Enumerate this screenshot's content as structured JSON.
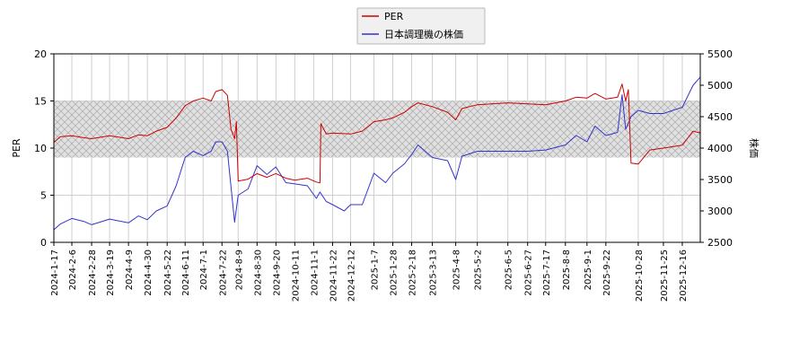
{
  "chart_data": {
    "type": "line",
    "legend_position": "top-center",
    "legend": [
      "PER",
      "日本調理機の株価"
    ],
    "left_axis": {
      "label": "PER",
      "range": [
        0,
        20
      ],
      "ticks": [
        0,
        5,
        10,
        15,
        20
      ]
    },
    "right_axis": {
      "label": "株価",
      "range": [
        2500,
        5500
      ],
      "ticks": [
        2500,
        3000,
        3500,
        4000,
        4500,
        5000,
        5500
      ]
    },
    "x_range": [
      "2024-01-17",
      "2026-01-05"
    ],
    "x_tick_labels": [
      "2024-1-17",
      "2024-2-6",
      "2024-2-28",
      "2024-3-19",
      "2024-4-9",
      "2024-4-30",
      "2024-5-22",
      "2024-6-11",
      "2024-7-1",
      "2024-7-22",
      "2024-8-9",
      "2024-8-30",
      "2024-9-20",
      "2024-10-11",
      "2024-11-1",
      "2024-11-22",
      "2024-12-12",
      "2025-1-7",
      "2025-1-28",
      "2025-2-18",
      "2025-3-13",
      "2025-4-8",
      "2025-5-2",
      "2025-6-5",
      "2025-6-27",
      "2025-7-17",
      "2025-8-8",
      "2025-9-1",
      "2025-9-22",
      "2025-10-28",
      "2025-11-25",
      "2025-12-16"
    ],
    "per_band": {
      "min": 9,
      "max": 15
    },
    "grid": true,
    "colors": {
      "per": "#cc0000",
      "price": "#3333cc",
      "band_fill": "#d9d9d9",
      "band_hatch": "#9a9a9a"
    },
    "series": [
      {
        "name": "PER",
        "axis": "left",
        "points": [
          [
            "2024-01-17",
            10.6
          ],
          [
            "2024-01-24",
            11.2
          ],
          [
            "2024-02-06",
            11.3
          ],
          [
            "2024-02-20",
            11.1
          ],
          [
            "2024-02-28",
            11.0
          ],
          [
            "2024-03-19",
            11.3
          ],
          [
            "2024-04-09",
            11.0
          ],
          [
            "2024-04-20",
            11.4
          ],
          [
            "2024-04-30",
            11.3
          ],
          [
            "2024-05-10",
            11.8
          ],
          [
            "2024-05-22",
            12.2
          ],
          [
            "2024-06-01",
            13.2
          ],
          [
            "2024-06-11",
            14.5
          ],
          [
            "2024-06-20",
            15.0
          ],
          [
            "2024-07-01",
            15.3
          ],
          [
            "2024-07-10",
            15.0
          ],
          [
            "2024-07-15",
            16.0
          ],
          [
            "2024-07-22",
            16.2
          ],
          [
            "2024-07-28",
            15.6
          ],
          [
            "2024-08-01",
            12.0
          ],
          [
            "2024-08-05",
            11.0
          ],
          [
            "2024-08-07",
            12.8
          ],
          [
            "2024-08-09",
            6.5
          ],
          [
            "2024-08-20",
            6.7
          ],
          [
            "2024-08-30",
            7.3
          ],
          [
            "2024-09-10",
            6.9
          ],
          [
            "2024-09-20",
            7.3
          ],
          [
            "2024-10-01",
            6.8
          ],
          [
            "2024-10-11",
            6.6
          ],
          [
            "2024-10-25",
            6.8
          ],
          [
            "2024-11-04",
            6.4
          ],
          [
            "2024-11-08",
            6.3
          ],
          [
            "2024-11-09",
            12.6
          ],
          [
            "2024-11-15",
            11.5
          ],
          [
            "2024-11-22",
            11.6
          ],
          [
            "2024-12-12",
            11.5
          ],
          [
            "2024-12-25",
            11.8
          ],
          [
            "2025-01-07",
            12.8
          ],
          [
            "2025-01-20",
            13.0
          ],
          [
            "2025-01-28",
            13.2
          ],
          [
            "2025-02-10",
            13.8
          ],
          [
            "2025-02-18",
            14.4
          ],
          [
            "2025-02-25",
            14.8
          ],
          [
            "2025-03-13",
            14.4
          ],
          [
            "2025-03-30",
            13.8
          ],
          [
            "2025-04-08",
            13.0
          ],
          [
            "2025-04-15",
            14.2
          ],
          [
            "2025-05-02",
            14.6
          ],
          [
            "2025-06-05",
            14.8
          ],
          [
            "2025-06-27",
            14.7
          ],
          [
            "2025-07-17",
            14.6
          ],
          [
            "2025-08-08",
            15.0
          ],
          [
            "2025-08-20",
            15.4
          ],
          [
            "2025-09-01",
            15.3
          ],
          [
            "2025-09-10",
            15.8
          ],
          [
            "2025-09-22",
            15.2
          ],
          [
            "2025-10-05",
            15.4
          ],
          [
            "2025-10-10",
            16.8
          ],
          [
            "2025-10-14",
            15.0
          ],
          [
            "2025-10-17",
            16.2
          ],
          [
            "2025-10-20",
            8.4
          ],
          [
            "2025-10-28",
            8.3
          ],
          [
            "2025-11-10",
            9.8
          ],
          [
            "2025-11-25",
            10.0
          ],
          [
            "2025-12-16",
            10.3
          ],
          [
            "2025-12-28",
            11.8
          ],
          [
            "2026-01-05",
            11.6
          ]
        ]
      },
      {
        "name": "日本調理機の株価",
        "axis": "right",
        "points": [
          [
            "2024-01-17",
            2700
          ],
          [
            "2024-01-24",
            2790
          ],
          [
            "2024-02-06",
            2880
          ],
          [
            "2024-02-20",
            2830
          ],
          [
            "2024-02-28",
            2780
          ],
          [
            "2024-03-19",
            2870
          ],
          [
            "2024-04-09",
            2810
          ],
          [
            "2024-04-20",
            2920
          ],
          [
            "2024-04-30",
            2860
          ],
          [
            "2024-05-10",
            3000
          ],
          [
            "2024-05-22",
            3080
          ],
          [
            "2024-06-01",
            3400
          ],
          [
            "2024-06-11",
            3850
          ],
          [
            "2024-06-20",
            3950
          ],
          [
            "2024-07-01",
            3880
          ],
          [
            "2024-07-10",
            3950
          ],
          [
            "2024-07-15",
            4100
          ],
          [
            "2024-07-22",
            4100
          ],
          [
            "2024-07-28",
            3950
          ],
          [
            "2024-08-05",
            2820
          ],
          [
            "2024-08-09",
            3250
          ],
          [
            "2024-08-20",
            3350
          ],
          [
            "2024-08-30",
            3720
          ],
          [
            "2024-09-10",
            3580
          ],
          [
            "2024-09-20",
            3700
          ],
          [
            "2024-10-01",
            3450
          ],
          [
            "2024-10-11",
            3430
          ],
          [
            "2024-10-25",
            3400
          ],
          [
            "2024-11-04",
            3200
          ],
          [
            "2024-11-08",
            3300
          ],
          [
            "2024-11-15",
            3150
          ],
          [
            "2024-11-22",
            3100
          ],
          [
            "2024-12-05",
            3000
          ],
          [
            "2024-12-12",
            3100
          ],
          [
            "2024-12-25",
            3100
          ],
          [
            "2025-01-07",
            3600
          ],
          [
            "2025-01-20",
            3450
          ],
          [
            "2025-01-28",
            3600
          ],
          [
            "2025-02-10",
            3750
          ],
          [
            "2025-02-18",
            3900
          ],
          [
            "2025-02-25",
            4050
          ],
          [
            "2025-03-13",
            3850
          ],
          [
            "2025-03-30",
            3800
          ],
          [
            "2025-04-08",
            3500
          ],
          [
            "2025-04-15",
            3870
          ],
          [
            "2025-05-02",
            3950
          ],
          [
            "2025-06-05",
            3950
          ],
          [
            "2025-06-27",
            3950
          ],
          [
            "2025-07-17",
            3970
          ],
          [
            "2025-08-08",
            4050
          ],
          [
            "2025-08-20",
            4200
          ],
          [
            "2025-09-01",
            4100
          ],
          [
            "2025-09-10",
            4350
          ],
          [
            "2025-09-22",
            4200
          ],
          [
            "2025-10-05",
            4250
          ],
          [
            "2025-10-10",
            4850
          ],
          [
            "2025-10-14",
            4300
          ],
          [
            "2025-10-20",
            4500
          ],
          [
            "2025-10-28",
            4600
          ],
          [
            "2025-11-10",
            4550
          ],
          [
            "2025-11-25",
            4550
          ],
          [
            "2025-12-16",
            4650
          ],
          [
            "2025-12-28",
            5000
          ],
          [
            "2026-01-05",
            5130
          ]
        ]
      }
    ]
  }
}
